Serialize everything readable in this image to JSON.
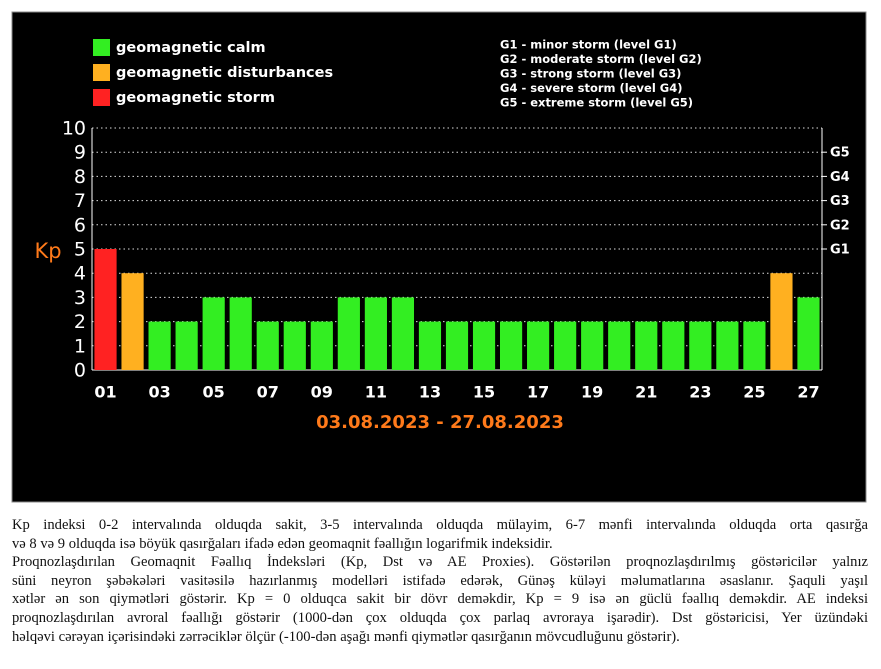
{
  "chart_data": {
    "type": "bar",
    "y_label": "Kp",
    "subtitle": "03.08.2023 - 27.08.2023",
    "categories": [
      "01",
      null,
      "03",
      null,
      "05",
      null,
      "07",
      null,
      "09",
      null,
      "11",
      null,
      "13",
      null,
      "15",
      null,
      "17",
      null,
      "19",
      null,
      "21",
      null,
      "23",
      null,
      "25",
      null,
      "27"
    ],
    "values": [
      5,
      4,
      2,
      2,
      3,
      3,
      2,
      2,
      2,
      3,
      3,
      3,
      2,
      2,
      2,
      2,
      2,
      2,
      2,
      2,
      2,
      2,
      2,
      2,
      2,
      4,
      3
    ],
    "bar_colors": [
      "#ff2222",
      "#ffb020",
      "#33ee22",
      "#33ee22",
      "#33ee22",
      "#33ee22",
      "#33ee22",
      "#33ee22",
      "#33ee22",
      "#33ee22",
      "#33ee22",
      "#33ee22",
      "#33ee22",
      "#33ee22",
      "#33ee22",
      "#33ee22",
      "#33ee22",
      "#33ee22",
      "#33ee22",
      "#33ee22",
      "#33ee22",
      "#33ee22",
      "#33ee22",
      "#33ee22",
      "#33ee22",
      "#ffb020",
      "#33ee22"
    ],
    "legend": [
      {
        "name": "geomagnetic calm",
        "color": "#33ee22"
      },
      {
        "name": "geomagnetic disturbances",
        "color": "#ffb020"
      },
      {
        "name": "geomagnetic storm",
        "color": "#ff2222"
      }
    ],
    "storm_levels": [
      "G1 - minor storm (level G1)",
      "G2 - moderate storm (level G2)",
      "G3 - strong storm (level G3)",
      "G4 - severe storm (level G4)",
      "G5 - extreme storm (level G5)"
    ],
    "ylim": [
      0,
      10
    ],
    "yticks": [
      0,
      1,
      2,
      3,
      4,
      5,
      6,
      7,
      8,
      9,
      10
    ],
    "y2lim": [
      0,
      10
    ],
    "y2ticks": [
      {
        "value": 5,
        "label": "G1"
      },
      {
        "value": 6,
        "label": "G2"
      },
      {
        "value": 7,
        "label": "G3"
      },
      {
        "value": 8,
        "label": "G4"
      },
      {
        "value": 9,
        "label": "G5"
      }
    ],
    "grid": true
  },
  "description": [
    "Kp indeksi 0-2 intervalında olduqda sakit, 3-5 intervalında olduqda mülayim, 6-7 mənfi intervalında olduqda orta qasırğa",
    "və 8 və 9 olduqda isə böyük qasırğaları ifadə edən geomaqnit fəallığın logarifmik indeksidir.",
    "Proqnozlaşdırılan Geomaqnit Fəallıq İndeksləri (Kp, Dst və AE Proxies). Göstərilən proqnozlaşdırılmış göstəricilər yalnız",
    "süni neyron şəbəkələri vasitəsilə hazırlanmış modelləri istifadə edərək, Günəş küləyi məlumatlarına əsaslanır. Şaquli yaşıl",
    "xətlər ən son qiymətləri göstərir. Kp = 0 olduqca sakit bir dövr deməkdir, Kp = 9 isə ən güclü fəallıq deməkdir. AE indeksi",
    "proqnozlaşdırılan avroral fəallığı göstərir (1000-dən çox olduqda çox parlaq avroraya işarədir). Dst göstəricisi, Yer üzündəki",
    "həlqəvi cərəyan içərisindəki zərrəciklər ölçür (-100-dən aşağı mənfi qiymətlər qasırğanın mövcudluğunu göstərir)."
  ]
}
